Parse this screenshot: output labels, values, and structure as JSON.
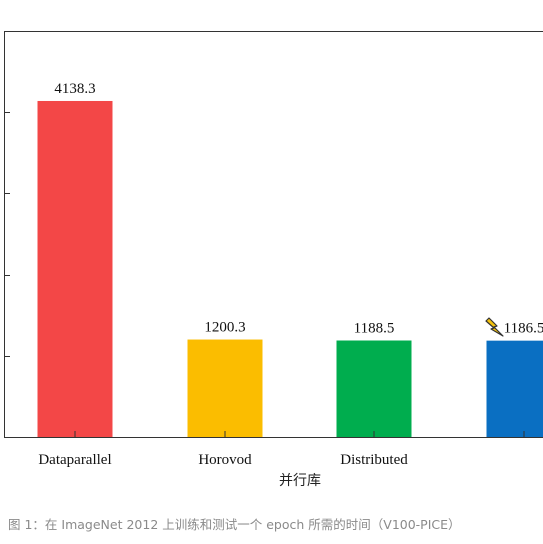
{
  "chart_data": {
    "type": "bar",
    "categories": [
      "Dataparallel",
      "Horovod",
      "Distributed",
      ""
    ],
    "values": [
      4138.3,
      1200.3,
      1188.5,
      1186.5
    ],
    "value_labels": [
      "4138.3",
      "1200.3",
      "1188.5",
      "1186.5"
    ],
    "xlabel": "并行库",
    "ylabel": "",
    "ylim": [
      0,
      5000
    ],
    "grid": false,
    "colors": [
      "#f34747",
      "#fbbd00",
      "#00ad4e",
      "#0a6fc2"
    ],
    "annotation_icon": "lightning-bolt-icon"
  },
  "caption": "图 1：在 ImageNet 2012 上训练和测试一个 epoch 所需的时间（V100-PICE）"
}
